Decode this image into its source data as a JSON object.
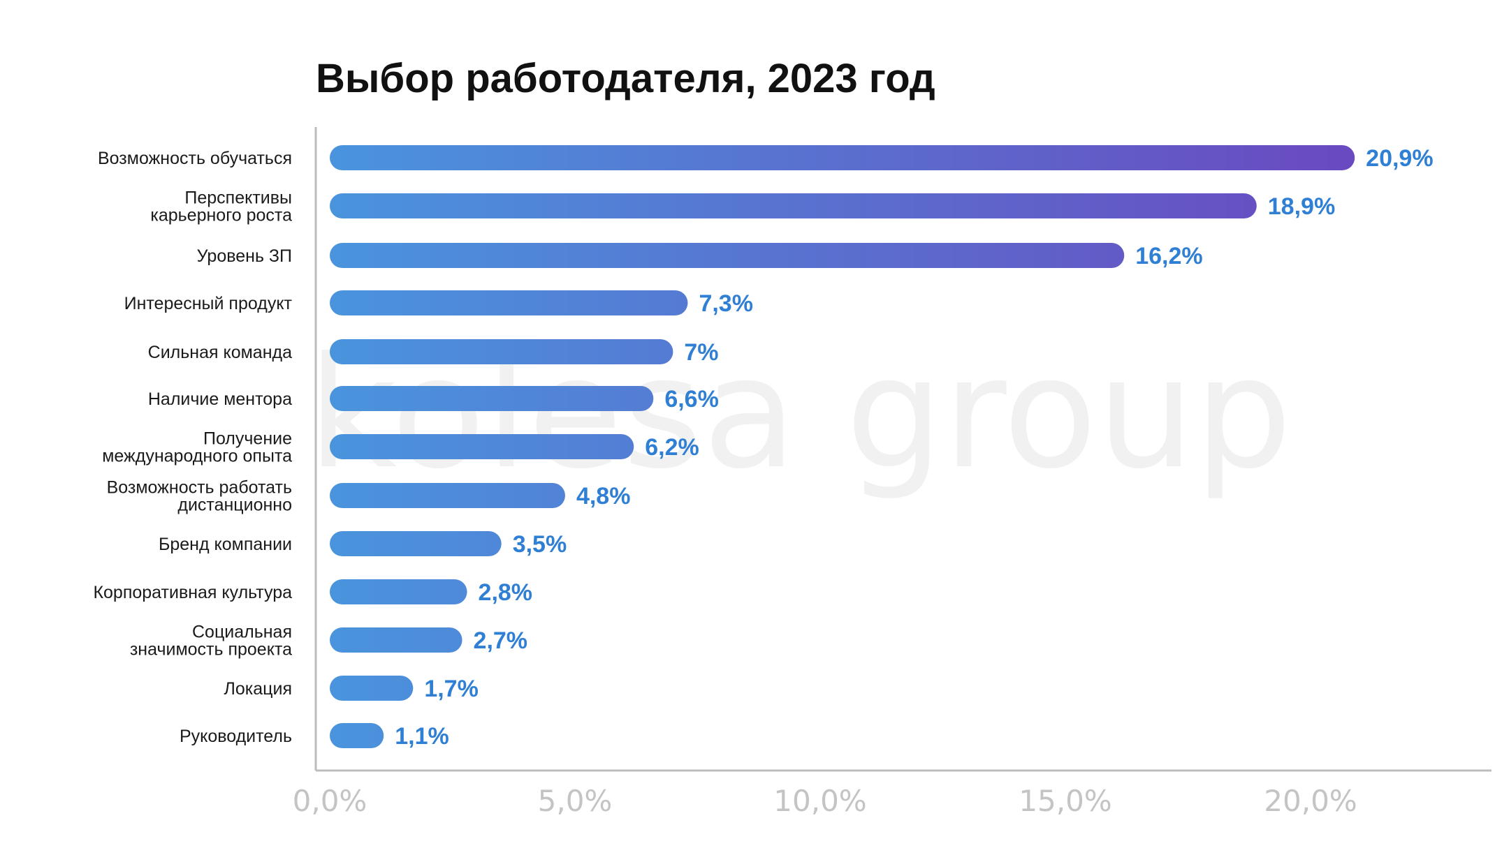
{
  "chart_data": {
    "type": "bar",
    "orientation": "horizontal",
    "title": "Выбор работодателя, 2023 год",
    "watermark": "kolesa group",
    "categories": [
      [
        "Возможность обучаться"
      ],
      [
        "Перспективы",
        "карьерного роста"
      ],
      [
        "Уровень ЗП"
      ],
      [
        "Интересный продукт"
      ],
      [
        "Сильная команда"
      ],
      [
        "Наличие ментора"
      ],
      [
        "Получение",
        "международного опыта"
      ],
      [
        "Возможность работать",
        "дистанционно"
      ],
      [
        "Бренд компании"
      ],
      [
        "Корпоративная культура"
      ],
      [
        "Социальная",
        "значимость проекта"
      ],
      [
        "Локация"
      ],
      [
        "Руководитель"
      ]
    ],
    "values": [
      20.9,
      18.9,
      16.2,
      7.3,
      7,
      6.6,
      6.2,
      4.8,
      3.5,
      2.8,
      2.7,
      1.7,
      1.1
    ],
    "value_labels": [
      "20,9%",
      "18,9%",
      "16,2%",
      "7,3%",
      "7%",
      "6,6%",
      "6,2%",
      "4,8%",
      "3,5%",
      "2,8%",
      "2,7%",
      "1,7%",
      "1,1%"
    ],
    "xticks": [
      0,
      5,
      10,
      15,
      20
    ],
    "xtick_labels": [
      "0,0%",
      "5,0%",
      "10,0%",
      "15,0%",
      "20,0%"
    ],
    "xlim": [
      0,
      24
    ],
    "xlabel": "",
    "ylabel": "",
    "grid": false,
    "legend": "none",
    "colors": {
      "bar_start": "#4a94dd",
      "bar_end": "#6a49c0",
      "value_text": "#2f7fd4",
      "axis": "#bdbdbd",
      "tick_text": "#c4c4c4",
      "watermark": "#f1f1f1"
    }
  }
}
